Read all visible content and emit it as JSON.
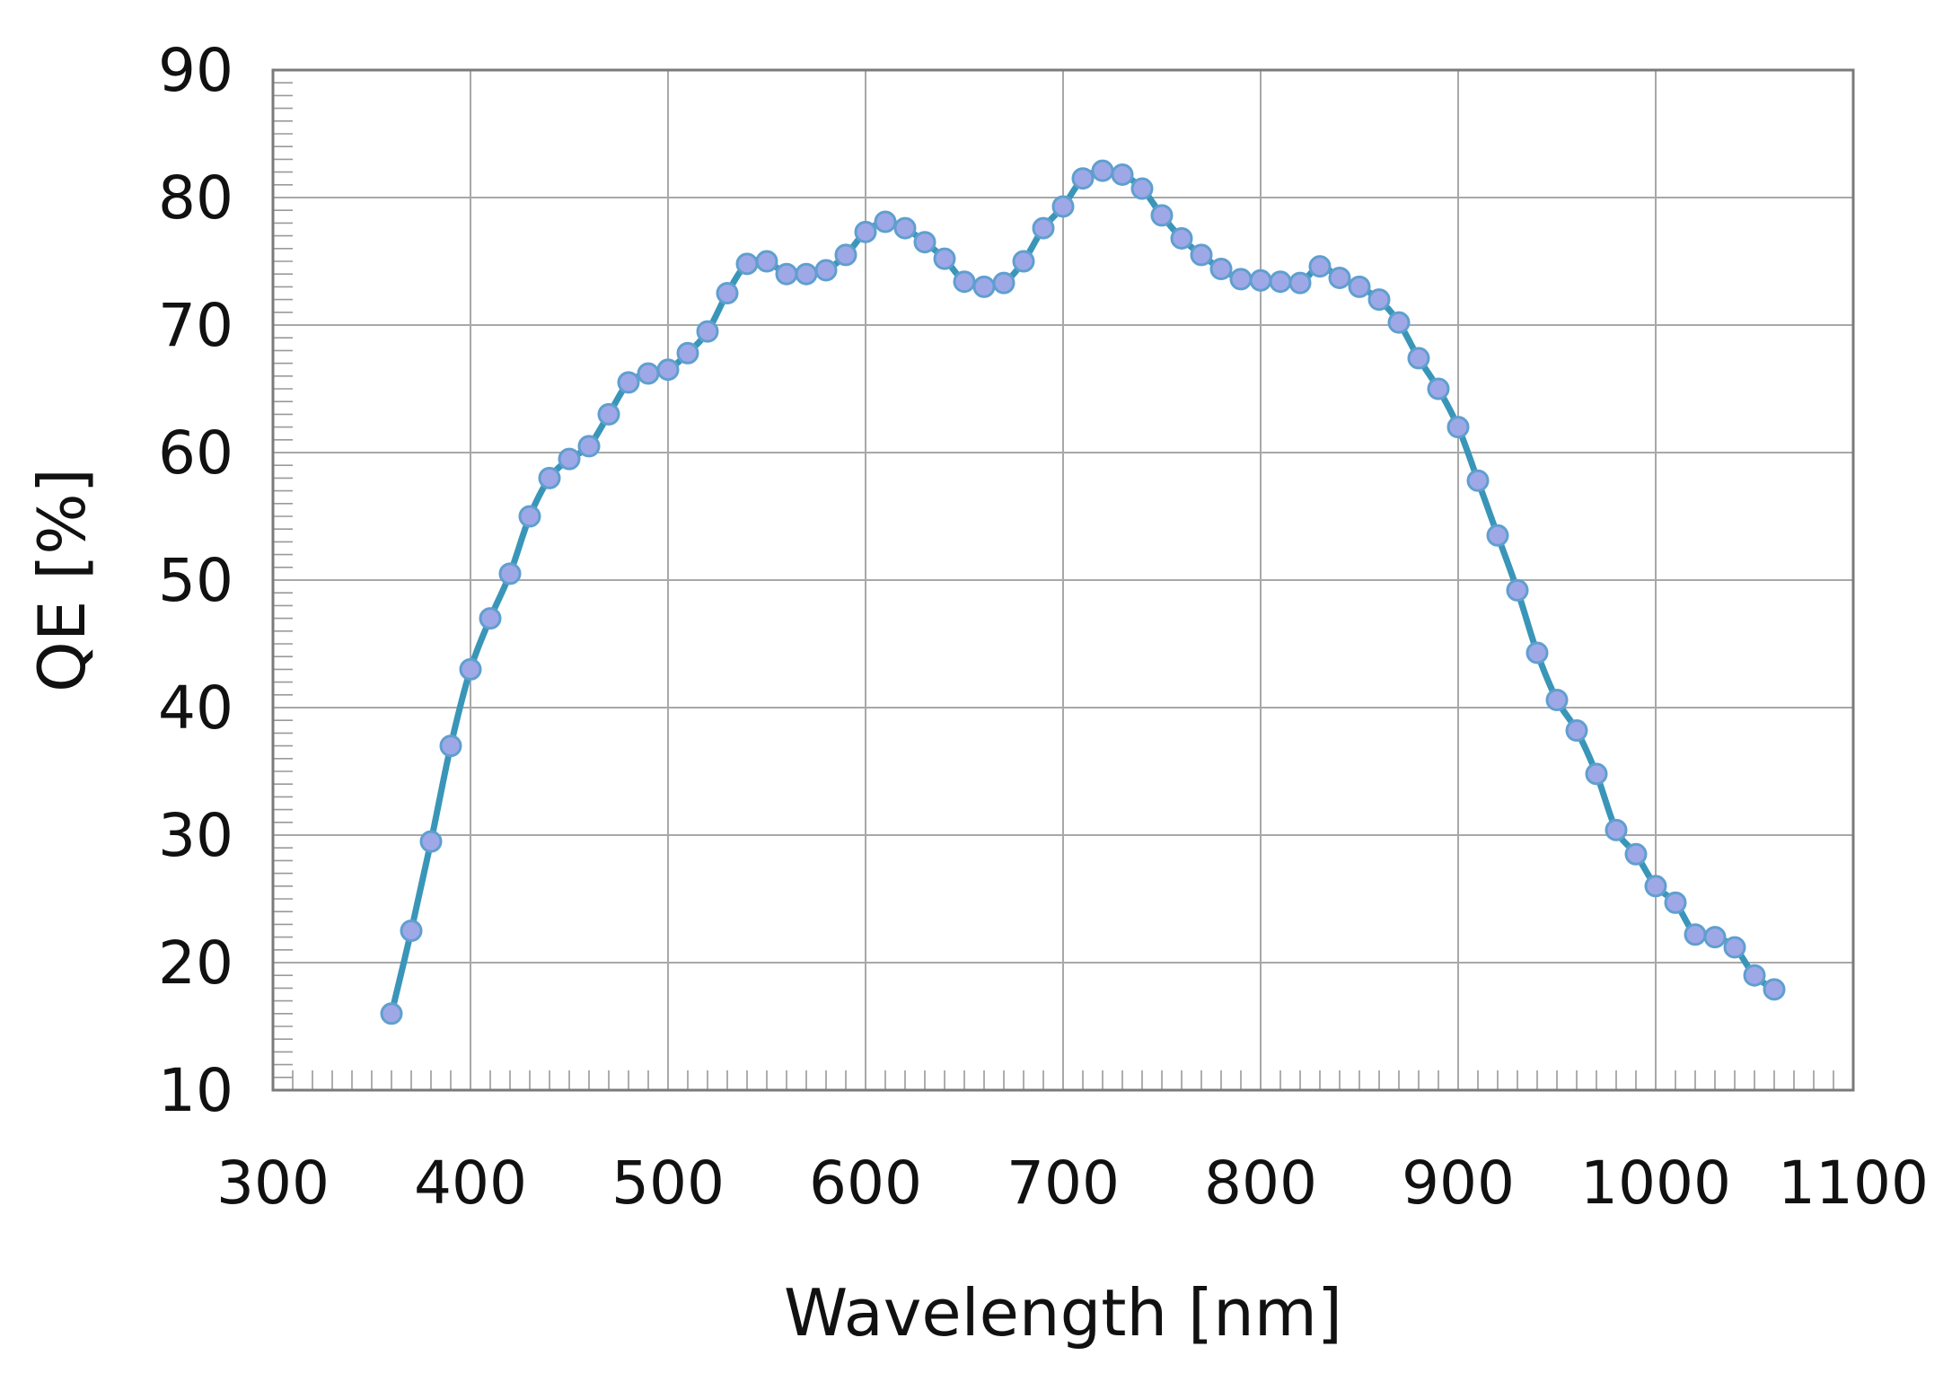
{
  "chart_data": {
    "type": "line",
    "title": "",
    "xlabel": "Wavelength [nm]",
    "ylabel": "QE [%]",
    "xlim": [
      300,
      1100
    ],
    "ylim": [
      10,
      90
    ],
    "xticks": [
      "300",
      "400",
      "500",
      "600",
      "700",
      "800",
      "900",
      "1000",
      "1100"
    ],
    "yticks": [
      "10",
      "20",
      "30",
      "40",
      "50",
      "60",
      "70",
      "80",
      "90"
    ],
    "grid": true,
    "legend": "none",
    "colors": {
      "line": "#3a96b8",
      "marker_fill": "#9fa8e6",
      "marker_stroke": "#5f9fd0",
      "grid": "#a8a8a8",
      "frame": "#7a7a7a"
    },
    "series": [
      {
        "x": [
          360,
          370,
          380,
          390,
          400,
          410,
          420,
          430,
          440,
          450,
          460,
          470,
          480,
          490,
          500,
          510,
          520,
          530,
          540,
          550,
          560,
          570,
          580,
          590,
          600,
          610,
          620,
          630,
          640,
          650,
          660,
          670,
          680,
          690,
          700,
          710,
          720,
          730,
          740,
          750,
          760,
          770,
          780,
          790,
          800,
          810,
          820,
          830,
          840,
          850,
          860,
          870,
          880,
          890,
          900,
          910,
          920,
          930,
          940,
          950,
          960,
          970,
          980,
          990,
          1000,
          1010,
          1020,
          1030,
          1040,
          1050,
          1060
        ],
        "values": [
          16,
          22.5,
          29.5,
          37,
          43,
          47,
          50.5,
          55,
          58,
          59.5,
          60.5,
          63,
          65.5,
          66.2,
          66.5,
          67.8,
          69.5,
          72.5,
          74.8,
          75,
          74,
          74,
          74.3,
          75.5,
          77.3,
          78.1,
          77.6,
          76.5,
          75.2,
          73.4,
          73,
          73.3,
          75,
          77.6,
          79.3,
          81.5,
          82.1,
          81.8,
          80.7,
          78.6,
          76.8,
          75.5,
          74.4,
          73.6,
          73.5,
          73.4,
          73.3,
          74.6,
          73.7,
          73,
          72,
          70.2,
          67.4,
          65,
          62,
          57.8,
          53.5,
          49.2,
          44.3,
          40.6,
          38.2,
          34.8,
          30.4,
          28.5,
          26,
          24.7,
          22.2,
          22,
          21.2,
          19,
          17.9
        ]
      }
    ]
  }
}
